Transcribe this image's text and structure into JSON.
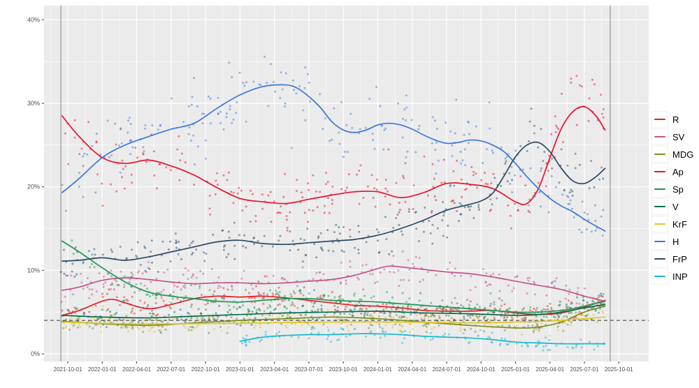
{
  "chart_data": {
    "type": "scatter",
    "title": "",
    "description": "Norwegian party polling: scatter of individual polls with smoothed trend lines, Sep 2021 - Sep 2025",
    "x_axis": {
      "unit": "months_since_2021-09-01",
      "range": [
        -1.07,
        51.6
      ],
      "tick_t": [
        1,
        4,
        7,
        10,
        13,
        16,
        19,
        22,
        25,
        28,
        31,
        34,
        37,
        40,
        43,
        46,
        49
      ],
      "tick_labels": [
        "2021-10-01",
        "2022-01-01",
        "2022-04-01",
        "2022-07-01",
        "2022-10-01",
        "2023-01-01",
        "2023-04-01",
        "2023-07-01",
        "2023-10-01",
        "2024-01-01",
        "2024-04-01",
        "2024-07-01",
        "2024-10-01",
        "2025-01-01",
        "2025-04-01",
        "2025-07-01",
        "2025-10-01"
      ],
      "minor_grid_step": 3,
      "minor_grid_start": -0.5
    },
    "y_axis": {
      "range": [
        -0.92,
        41.7
      ],
      "tick_values": [
        0,
        10,
        20,
        30,
        40
      ],
      "tick_labels": [
        "0%",
        "10%",
        "20%",
        "30%",
        "40%"
      ],
      "minor_ticks": [
        5,
        15,
        25,
        35
      ]
    },
    "threshold_line": {
      "value": 4,
      "style": "dashed",
      "color": "#333333"
    },
    "event_lines": {
      "t": [
        0.4,
        48.25
      ],
      "color": "#848484"
    },
    "legend": {
      "position": "right",
      "entries": [
        "R",
        "SV",
        "MDG",
        "Ap",
        "Sp",
        "V",
        "KrF",
        "H",
        "FrP",
        "INP"
      ]
    },
    "style": {
      "panel_bg": "#ebebeb",
      "grid_major": "#ffffff",
      "grid_minor": "#ffffff",
      "tick_text_color": "#4d4d4d",
      "tick_mark_color": "#333333",
      "scatter_opacity": 0.5,
      "scatter_radius": 1.5,
      "line_width": 1.7
    },
    "series": [
      {
        "name": "R",
        "color": "#e02128",
        "scatter_n": 225,
        "scatter_t_range": [
          0.4,
          47.7
        ],
        "points": [
          [
            0.5,
            4.6
          ],
          [
            2,
            5.2
          ],
          [
            4,
            6.3
          ],
          [
            5,
            6.5
          ],
          [
            6,
            6.1
          ],
          [
            8,
            5.4
          ],
          [
            10,
            5.9
          ],
          [
            12,
            6.6
          ],
          [
            14,
            6.9
          ],
          [
            16,
            6.8
          ],
          [
            18,
            6.9
          ],
          [
            20,
            6.7
          ],
          [
            22,
            6.4
          ],
          [
            24,
            6.1
          ],
          [
            26,
            5.8
          ],
          [
            28,
            5.7
          ],
          [
            30,
            5.5
          ],
          [
            32,
            5.2
          ],
          [
            34,
            5.1
          ],
          [
            36,
            5.1
          ],
          [
            38,
            5.2
          ],
          [
            40,
            4.9
          ],
          [
            42,
            4.7
          ],
          [
            44,
            4.9
          ],
          [
            46,
            5.6
          ],
          [
            47.8,
            6.4
          ]
        ]
      },
      {
        "name": "SV",
        "color": "#c2558b",
        "scatter_n": 225,
        "scatter_t_range": [
          0.4,
          47.7
        ],
        "points": [
          [
            0.5,
            7.6
          ],
          [
            2,
            8.0
          ],
          [
            4,
            8.8
          ],
          [
            6,
            9.1
          ],
          [
            8,
            8.9
          ],
          [
            10,
            8.6
          ],
          [
            12,
            8.4
          ],
          [
            14,
            8.5
          ],
          [
            16,
            8.5
          ],
          [
            18,
            8.4
          ],
          [
            20,
            8.5
          ],
          [
            22,
            8.7
          ],
          [
            24,
            8.9
          ],
          [
            26,
            9.4
          ],
          [
            28,
            10.2
          ],
          [
            29,
            10.5
          ],
          [
            30,
            10.4
          ],
          [
            32,
            10.1
          ],
          [
            34,
            9.8
          ],
          [
            36,
            9.6
          ],
          [
            38,
            9.2
          ],
          [
            40,
            8.7
          ],
          [
            42,
            8.2
          ],
          [
            44,
            7.7
          ],
          [
            46,
            6.9
          ],
          [
            47.8,
            6.3
          ]
        ]
      },
      {
        "name": "MDG",
        "color": "#7a8c1e",
        "scatter_n": 225,
        "scatter_t_range": [
          0.4,
          47.7
        ],
        "points": [
          [
            0.5,
            3.9
          ],
          [
            4,
            3.6
          ],
          [
            8,
            3.4
          ],
          [
            12,
            3.7
          ],
          [
            16,
            4.0
          ],
          [
            20,
            4.2
          ],
          [
            24,
            4.4
          ],
          [
            28,
            4.2
          ],
          [
            32,
            3.8
          ],
          [
            36,
            3.4
          ],
          [
            40,
            3.1
          ],
          [
            42,
            3.2
          ],
          [
            44,
            3.8
          ],
          [
            46,
            5.0
          ],
          [
            47.8,
            5.7
          ]
        ]
      },
      {
        "name": "Ap",
        "color": "#e8112d",
        "scatter_n": 235,
        "scatter_t_range": [
          0.4,
          47.7
        ],
        "points": [
          [
            0.5,
            28.5
          ],
          [
            2,
            26.0
          ],
          [
            4,
            23.5
          ],
          [
            6,
            22.8
          ],
          [
            8,
            23.2
          ],
          [
            10,
            22.5
          ],
          [
            12,
            21.4
          ],
          [
            14,
            19.9
          ],
          [
            16,
            18.6
          ],
          [
            18,
            18.2
          ],
          [
            20,
            18.0
          ],
          [
            22,
            18.5
          ],
          [
            24,
            19.0
          ],
          [
            26,
            19.4
          ],
          [
            28,
            19.4
          ],
          [
            30,
            18.7
          ],
          [
            32,
            19.3
          ],
          [
            34,
            20.4
          ],
          [
            36,
            20.3
          ],
          [
            38,
            19.8
          ],
          [
            40,
            18.2
          ],
          [
            41,
            18.0
          ],
          [
            42,
            19.8
          ],
          [
            43,
            23.5
          ],
          [
            44,
            27.0
          ],
          [
            45,
            29.0
          ],
          [
            46,
            29.6
          ],
          [
            47,
            28.5
          ],
          [
            47.8,
            26.8
          ]
        ]
      },
      {
        "name": "Sp",
        "color": "#1f9854",
        "scatter_n": 225,
        "scatter_t_range": [
          0.4,
          47.7
        ],
        "points": [
          [
            0.5,
            13.5
          ],
          [
            2,
            12.2
          ],
          [
            4,
            10.3
          ],
          [
            6,
            8.6
          ],
          [
            8,
            7.4
          ],
          [
            10,
            6.9
          ],
          [
            12,
            6.6
          ],
          [
            14,
            6.3
          ],
          [
            16,
            6.2
          ],
          [
            18,
            6.4
          ],
          [
            20,
            6.6
          ],
          [
            22,
            6.6
          ],
          [
            24,
            6.4
          ],
          [
            26,
            6.3
          ],
          [
            28,
            6.2
          ],
          [
            30,
            6.0
          ],
          [
            32,
            5.8
          ],
          [
            34,
            5.6
          ],
          [
            36,
            5.4
          ],
          [
            38,
            5.2
          ],
          [
            40,
            5.0
          ],
          [
            42,
            5.0
          ],
          [
            44,
            5.2
          ],
          [
            46,
            5.7
          ],
          [
            47.8,
            6.3
          ]
        ]
      },
      {
        "name": "V",
        "color": "#0c6b4d",
        "scatter_n": 225,
        "scatter_t_range": [
          0.4,
          47.7
        ],
        "points": [
          [
            0.5,
            4.6
          ],
          [
            4,
            4.4
          ],
          [
            8,
            4.3
          ],
          [
            12,
            4.5
          ],
          [
            16,
            4.7
          ],
          [
            20,
            4.9
          ],
          [
            24,
            5.0
          ],
          [
            28,
            5.1
          ],
          [
            32,
            4.9
          ],
          [
            36,
            4.8
          ],
          [
            40,
            4.6
          ],
          [
            42,
            4.7
          ],
          [
            44,
            5.0
          ],
          [
            46,
            5.5
          ],
          [
            47.8,
            5.9
          ]
        ]
      },
      {
        "name": "KrF",
        "color": "#e0c62a",
        "scatter_n": 225,
        "scatter_t_range": [
          0.4,
          47.7
        ],
        "points": [
          [
            0.5,
            3.8
          ],
          [
            6,
            3.6
          ],
          [
            12,
            3.6
          ],
          [
            18,
            3.7
          ],
          [
            24,
            3.8
          ],
          [
            30,
            3.8
          ],
          [
            36,
            3.7
          ],
          [
            40,
            3.8
          ],
          [
            44,
            4.0
          ],
          [
            47.8,
            4.4
          ]
        ]
      },
      {
        "name": "H",
        "color": "#3c77dd",
        "scatter_n": 235,
        "scatter_t_range": [
          0.4,
          47.7
        ],
        "points": [
          [
            0.5,
            19.3
          ],
          [
            2,
            21.0
          ],
          [
            4,
            23.5
          ],
          [
            6,
            25.0
          ],
          [
            8,
            26.0
          ],
          [
            10,
            26.9
          ],
          [
            12,
            27.6
          ],
          [
            14,
            29.4
          ],
          [
            16,
            31.0
          ],
          [
            18,
            32.0
          ],
          [
            20,
            32.2
          ],
          [
            21,
            31.8
          ],
          [
            22,
            30.8
          ],
          [
            23,
            29.5
          ],
          [
            24,
            27.8
          ],
          [
            25,
            26.8
          ],
          [
            26,
            26.5
          ],
          [
            27,
            26.8
          ],
          [
            28,
            27.4
          ],
          [
            29,
            27.6
          ],
          [
            30,
            27.4
          ],
          [
            31,
            26.9
          ],
          [
            32,
            26.2
          ],
          [
            33,
            25.6
          ],
          [
            34,
            25.2
          ],
          [
            35,
            25.3
          ],
          [
            36,
            25.6
          ],
          [
            37,
            25.5
          ],
          [
            38,
            25.0
          ],
          [
            39,
            24.2
          ],
          [
            40,
            22.8
          ],
          [
            41,
            21.2
          ],
          [
            42,
            19.8
          ],
          [
            43,
            18.6
          ],
          [
            44,
            17.7
          ],
          [
            45,
            17.0
          ],
          [
            46,
            16.1
          ],
          [
            47,
            15.3
          ],
          [
            47.8,
            14.7
          ]
        ]
      },
      {
        "name": "FrP",
        "color": "#2a4a66",
        "scatter_n": 235,
        "scatter_t_range": [
          0.4,
          47.7
        ],
        "points": [
          [
            0.5,
            11.1
          ],
          [
            2,
            11.2
          ],
          [
            4,
            11.5
          ],
          [
            6,
            11.2
          ],
          [
            8,
            11.6
          ],
          [
            10,
            12.2
          ],
          [
            12,
            12.8
          ],
          [
            14,
            13.4
          ],
          [
            16,
            13.6
          ],
          [
            18,
            13.2
          ],
          [
            20,
            13.1
          ],
          [
            22,
            13.3
          ],
          [
            24,
            13.5
          ],
          [
            26,
            13.7
          ],
          [
            28,
            14.2
          ],
          [
            30,
            15.0
          ],
          [
            32,
            16.0
          ],
          [
            34,
            17.2
          ],
          [
            36,
            17.9
          ],
          [
            37,
            18.3
          ],
          [
            38,
            19.2
          ],
          [
            39,
            21.3
          ],
          [
            40,
            23.6
          ],
          [
            41,
            25.0
          ],
          [
            42,
            25.3
          ],
          [
            43,
            24.2
          ],
          [
            44,
            22.2
          ],
          [
            45,
            20.7
          ],
          [
            46,
            20.4
          ],
          [
            47,
            21.2
          ],
          [
            47.8,
            22.2
          ]
        ]
      },
      {
        "name": "INP",
        "color": "#17b8ce",
        "scatter_n": 120,
        "scatter_t_range": [
          16,
          47.7
        ],
        "points": [
          [
            16,
            1.5
          ],
          [
            18,
            2.0
          ],
          [
            20,
            2.2
          ],
          [
            22,
            2.3
          ],
          [
            24,
            2.3
          ],
          [
            26,
            2.4
          ],
          [
            28,
            2.4
          ],
          [
            30,
            2.3
          ],
          [
            32,
            2.1
          ],
          [
            34,
            2.0
          ],
          [
            36,
            1.9
          ],
          [
            38,
            1.7
          ],
          [
            40,
            1.4
          ],
          [
            42,
            1.3
          ],
          [
            44,
            1.2
          ],
          [
            46,
            1.2
          ],
          [
            47.8,
            1.2
          ]
        ]
      }
    ]
  }
}
